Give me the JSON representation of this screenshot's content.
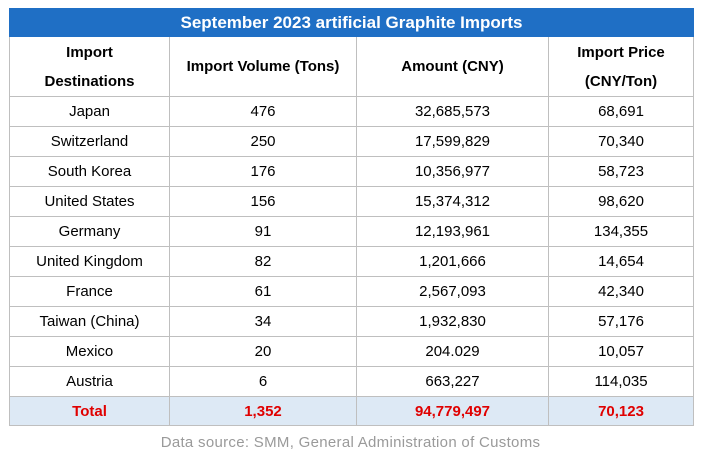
{
  "chart_data": {
    "type": "table",
    "title": "September 2023 artificial Graphite Imports",
    "columns": [
      [
        "Import",
        "Destinations"
      ],
      [
        "Import Volume (Tons)"
      ],
      [
        "Amount (CNY)"
      ],
      [
        "Import Price",
        "(CNY/Ton)"
      ]
    ],
    "rows": [
      [
        "Japan",
        "476",
        "32,685,573",
        "68,691"
      ],
      [
        "Switzerland",
        "250",
        "17,599,829",
        "70,340"
      ],
      [
        "South Korea",
        "176",
        "10,356,977",
        "58,723"
      ],
      [
        "United States",
        "156",
        "15,374,312",
        "98,620"
      ],
      [
        "Germany",
        "91",
        "12,193,961",
        "134,355"
      ],
      [
        "United Kingdom",
        "82",
        "1,201,666",
        "14,654"
      ],
      [
        "France",
        "61",
        "2,567,093",
        "42,340"
      ],
      [
        "Taiwan (China)",
        "34",
        "1,932,830",
        "57,176"
      ],
      [
        "Mexico",
        "20",
        "204.029",
        "10,057"
      ],
      [
        "Austria",
        "6",
        "663,227",
        "114,035"
      ]
    ],
    "total": [
      "Total",
      "1,352",
      "94,779,497",
      "70,123"
    ]
  },
  "source": "Data source: SMM, General Administration of Customs",
  "colors": {
    "title_bg": "#1f6fc5",
    "title_text": "#ffffff",
    "total_bg": "#dde9f5",
    "total_text": "#e00000",
    "source_text": "#9a9a9a"
  }
}
